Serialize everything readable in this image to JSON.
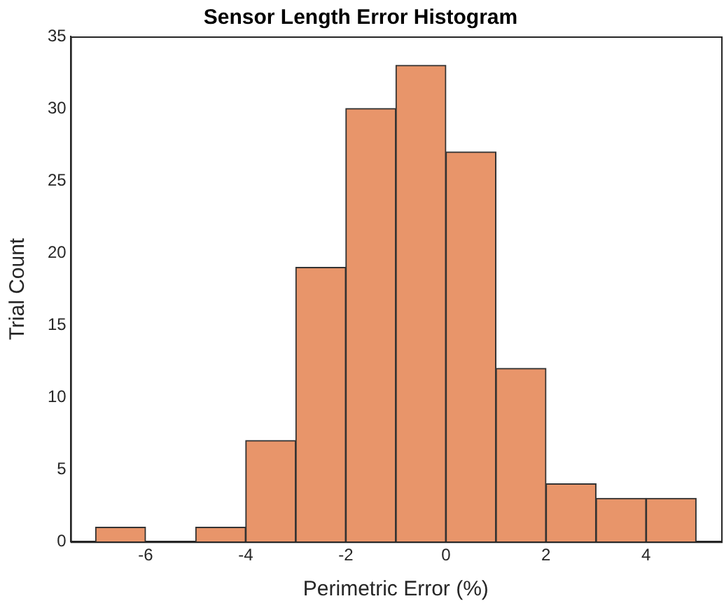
{
  "chart_data": {
    "type": "histogram",
    "title": "Sensor Length Error Histogram",
    "xlabel": "Perimetric Error (%)",
    "ylabel": "Trial Count",
    "bins": [
      -7,
      -6,
      -5,
      -4,
      -3,
      -2,
      -1,
      0,
      1,
      2,
      3,
      4,
      5
    ],
    "values": [
      1,
      0,
      1,
      7,
      19,
      30,
      33,
      27,
      12,
      4,
      3,
      3
    ],
    "color": "#e8956a",
    "xlim": [
      -7.5,
      5.5
    ],
    "xticks": [
      -6,
      -4,
      -2,
      0,
      2,
      4
    ],
    "ylim": [
      0,
      35
    ],
    "yticks": [
      0,
      5,
      10,
      15,
      20,
      25,
      30,
      35
    ],
    "grid": false,
    "legend": false
  }
}
